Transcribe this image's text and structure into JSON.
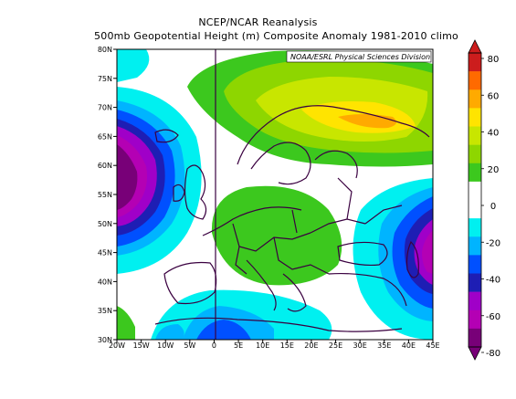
{
  "header": {
    "title": "NCEP/NCAR Reanalysis",
    "subtitle": "500mb Geopotential Height (m) Composite Anomaly 1981-2010 climo"
  },
  "map": {
    "credit": "NOAA/ESRL Physical Sciences Division",
    "lat_labels": [
      "80N",
      "75N",
      "70N",
      "65N",
      "60N",
      "55N",
      "50N",
      "45N",
      "40N",
      "35N",
      "30N"
    ],
    "lon_labels": [
      "20W",
      "15W",
      "10W",
      "5W",
      "0",
      "5E",
      "10E",
      "15E",
      "20E",
      "25E",
      "30E",
      "35E",
      "40E",
      "45E"
    ],
    "features": [
      {
        "name": "positive anomaly over Scandinavia / Barents Sea",
        "peak": 40
      },
      {
        "name": "positive anomaly over central Europe",
        "peak": 20
      },
      {
        "name": "negative anomaly west of British Isles",
        "peak": -80
      },
      {
        "name": "negative anomaly over Black Sea / Caucasus",
        "peak": -60
      },
      {
        "name": "negative anomaly over western Mediterranean",
        "peak": -40
      }
    ]
  },
  "colorbar": {
    "labels": [
      "80",
      "60",
      "40",
      "20",
      "0",
      "-20",
      "-40",
      "-60",
      "-80"
    ],
    "colors": [
      "#cc1d1d",
      "#ff6a00",
      "#ffaa00",
      "#ffe400",
      "#c8e600",
      "#8ed600",
      "#3cc81e",
      "#ffffff",
      "#ffffff",
      "#00f0f0",
      "#00b4ff",
      "#0050ff",
      "#1e1eb4",
      "#a000c8",
      "#b400b4",
      "#780078"
    ]
  }
}
